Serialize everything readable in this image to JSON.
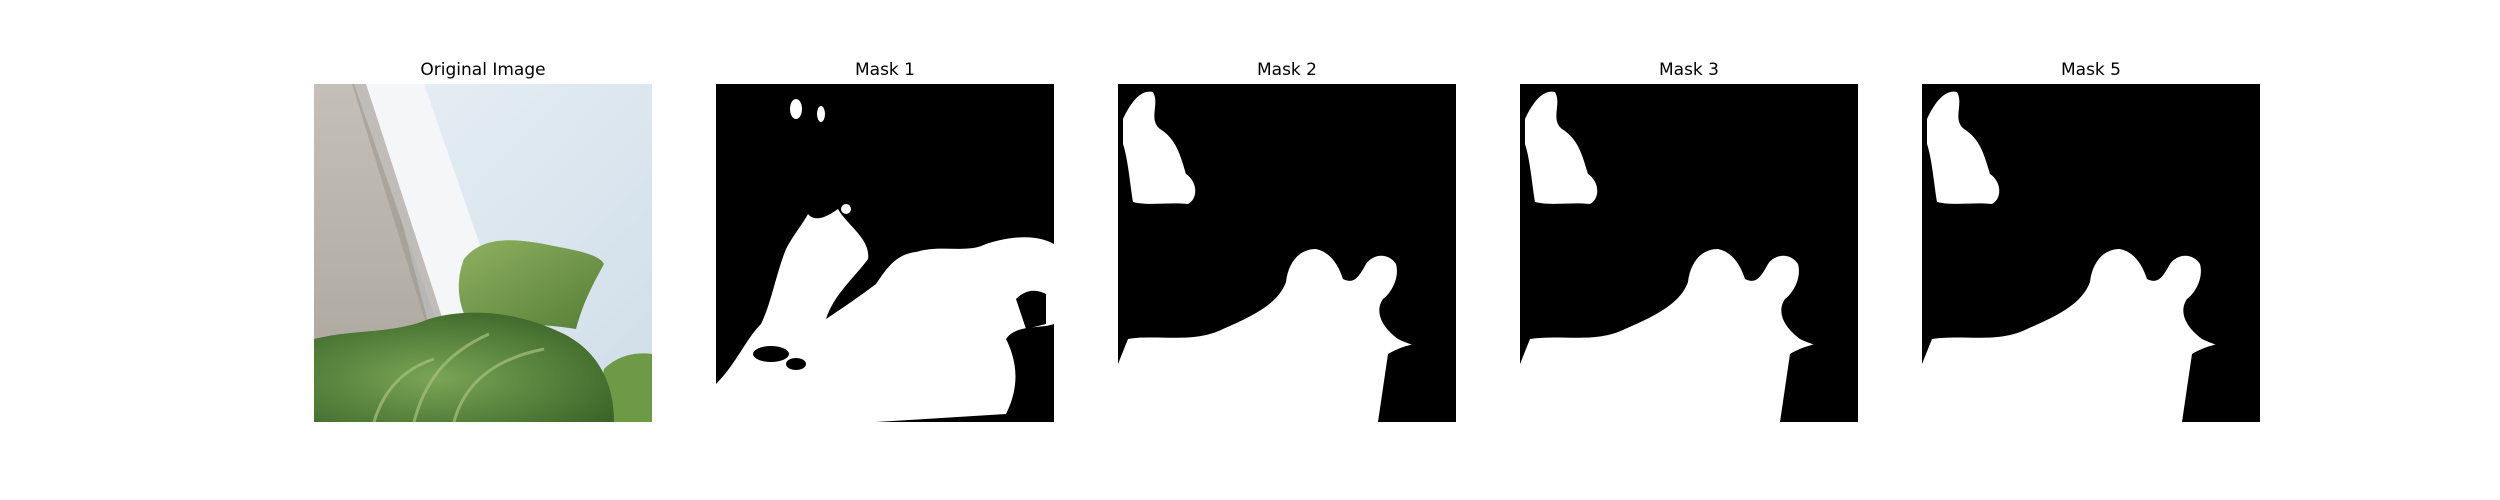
{
  "figure": {
    "panels": [
      {
        "title": "Original Image",
        "kind": "photo"
      },
      {
        "title": "Mask 1",
        "kind": "mask"
      },
      {
        "title": "Mask 2",
        "kind": "mask"
      },
      {
        "title": "Mask 3",
        "kind": "mask"
      },
      {
        "title": "Mask 5",
        "kind": "mask"
      }
    ]
  },
  "colors": {
    "background": "#ffffff",
    "mask_background": "#000000",
    "mask_foreground": "#ffffff",
    "leaf_dark": "#3f6b2c",
    "leaf_light": "#6f9a4a",
    "sky": "#dde9f2",
    "concrete": "#b8b3aa"
  }
}
